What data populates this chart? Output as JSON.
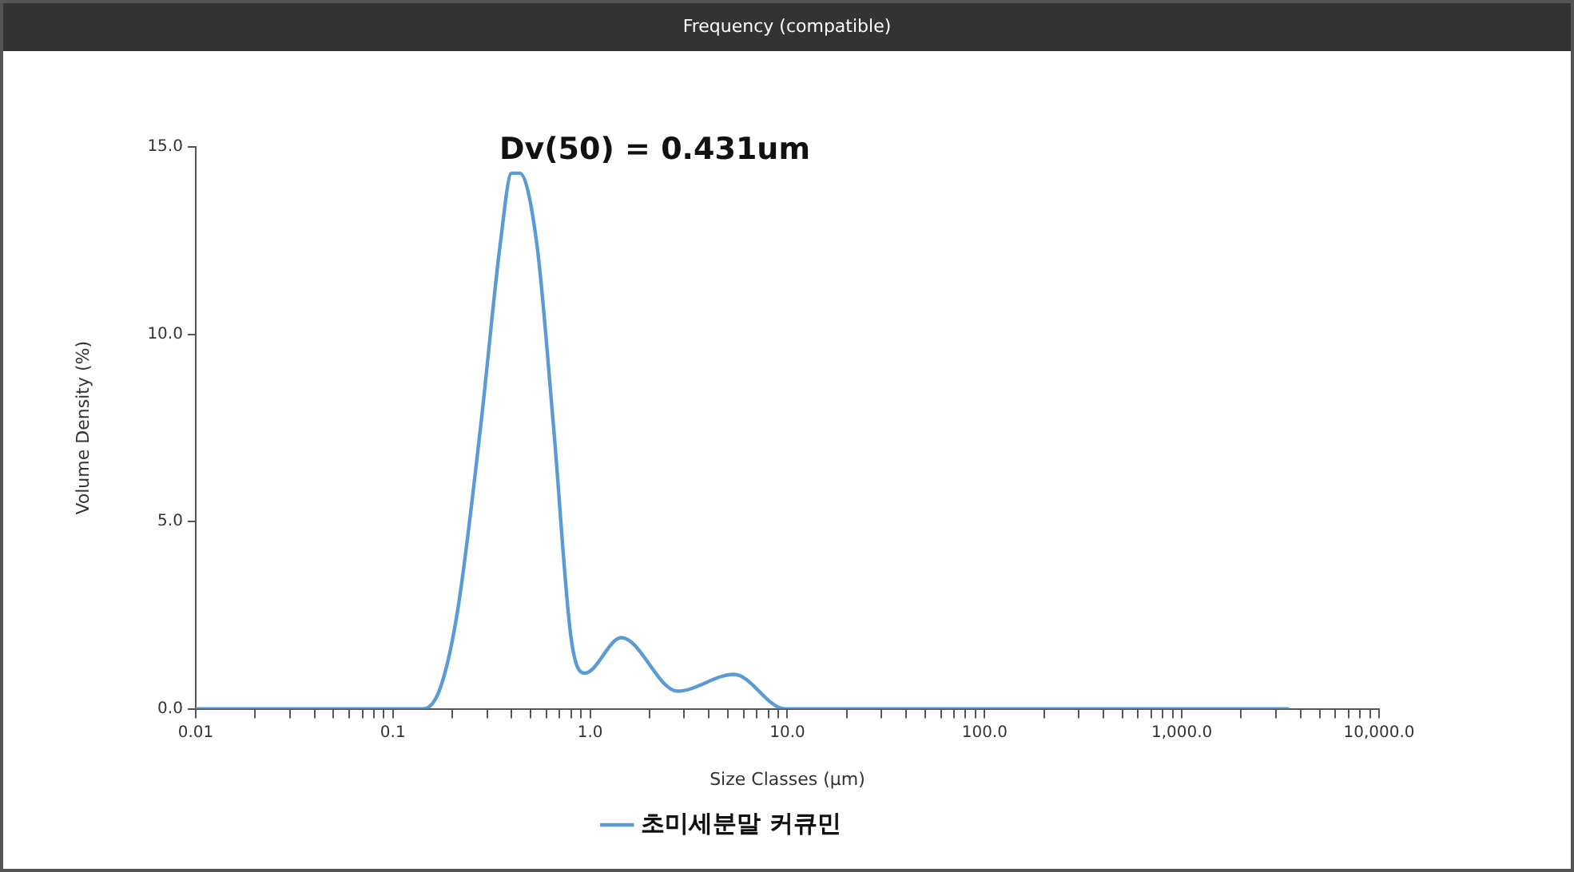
{
  "chart_data": {
    "type": "line",
    "title": "Frequency (compatible)",
    "xlabel": "Size Classes (μm)",
    "ylabel": "Volume Density (%)",
    "annotations": [
      "Dv(50) = 0.431um"
    ],
    "log": "x",
    "grid": false,
    "legend": "bottom",
    "marker": "none",
    "line_style": "solid",
    "xlim": [
      0.01,
      10000
    ],
    "ylim": [
      0,
      15
    ],
    "xticks": [
      0.01,
      {
        "value": 0.02,
        "label": null
      },
      {
        "value": 0.03,
        "label": null
      },
      {
        "value": 0.04,
        "label": null
      },
      {
        "value": 0.05,
        "label": null
      },
      {
        "value": 0.06,
        "label": null
      },
      {
        "value": 0.07,
        "label": null
      },
      {
        "value": 0.08,
        "label": null
      },
      {
        "value": 0.09,
        "label": null
      },
      0.1,
      {
        "value": 0.2,
        "label": null
      },
      {
        "value": 0.3,
        "label": null
      },
      {
        "value": 0.4,
        "label": null
      },
      {
        "value": 0.5,
        "label": null
      },
      {
        "value": 0.6,
        "label": null
      },
      {
        "value": 0.7,
        "label": null
      },
      {
        "value": 0.8,
        "label": null
      },
      {
        "value": 0.9,
        "label": null
      },
      {
        "value": 1,
        "label": "1.0"
      },
      {
        "value": 2,
        "label": null
      },
      {
        "value": 3,
        "label": null
      },
      {
        "value": 4,
        "label": null
      },
      {
        "value": 5,
        "label": null
      },
      {
        "value": 6,
        "label": null
      },
      {
        "value": 7,
        "label": null
      },
      {
        "value": 8,
        "label": null
      },
      {
        "value": 9,
        "label": null
      },
      {
        "value": 10,
        "label": "10.0"
      },
      {
        "value": 20,
        "label": null
      },
      {
        "value": 30,
        "label": null
      },
      {
        "value": 40,
        "label": null
      },
      {
        "value": 50,
        "label": null
      },
      {
        "value": 60,
        "label": null
      },
      {
        "value": 70,
        "label": null
      },
      {
        "value": 80,
        "label": null
      },
      {
        "value": 90,
        "label": null
      },
      {
        "value": 100,
        "label": "100.0"
      },
      {
        "value": 200,
        "label": null
      },
      {
        "value": 300,
        "label": null
      },
      {
        "value": 400,
        "label": null
      },
      {
        "value": 500,
        "label": null
      },
      {
        "value": 600,
        "label": null
      },
      {
        "value": 700,
        "label": null
      },
      {
        "value": 800,
        "label": null
      },
      {
        "value": 900,
        "label": null
      },
      {
        "value": 1000,
        "label": "1,000.0"
      },
      {
        "value": 2000,
        "label": null
      },
      {
        "value": 3000,
        "label": null
      },
      {
        "value": 4000,
        "label": null
      },
      {
        "value": 5000,
        "label": null
      },
      {
        "value": 6000,
        "label": null
      },
      {
        "value": 7000,
        "label": null
      },
      {
        "value": 8000,
        "label": null
      },
      {
        "value": 9000,
        "label": null
      },
      {
        "value": 10000,
        "label": "10,000.0"
      }
    ],
    "yticks": [
      {
        "value": 0,
        "label": "0.0"
      },
      {
        "value": 5,
        "label": "5.0"
      },
      {
        "value": 10,
        "label": "10.0"
      },
      {
        "value": 15,
        "label": "15.0"
      }
    ],
    "series": [
      {
        "name": "초미세분말 커큐민",
        "color": "#5b9bd5",
        "x": [
          0.01,
          0.143,
          0.175,
          0.214,
          0.278,
          0.35,
          0.4,
          0.44,
          0.537,
          0.653,
          0.8,
          0.94,
          1.44,
          2.77,
          5.36,
          9.7,
          3500
        ],
        "values": [
          0,
          0,
          0.6,
          2.7,
          7.5,
          12.4,
          14.3,
          14.3,
          12.4,
          7.5,
          1.9,
          0.95,
          1.9,
          0.47,
          0.92,
          0,
          0
        ]
      }
    ]
  }
}
